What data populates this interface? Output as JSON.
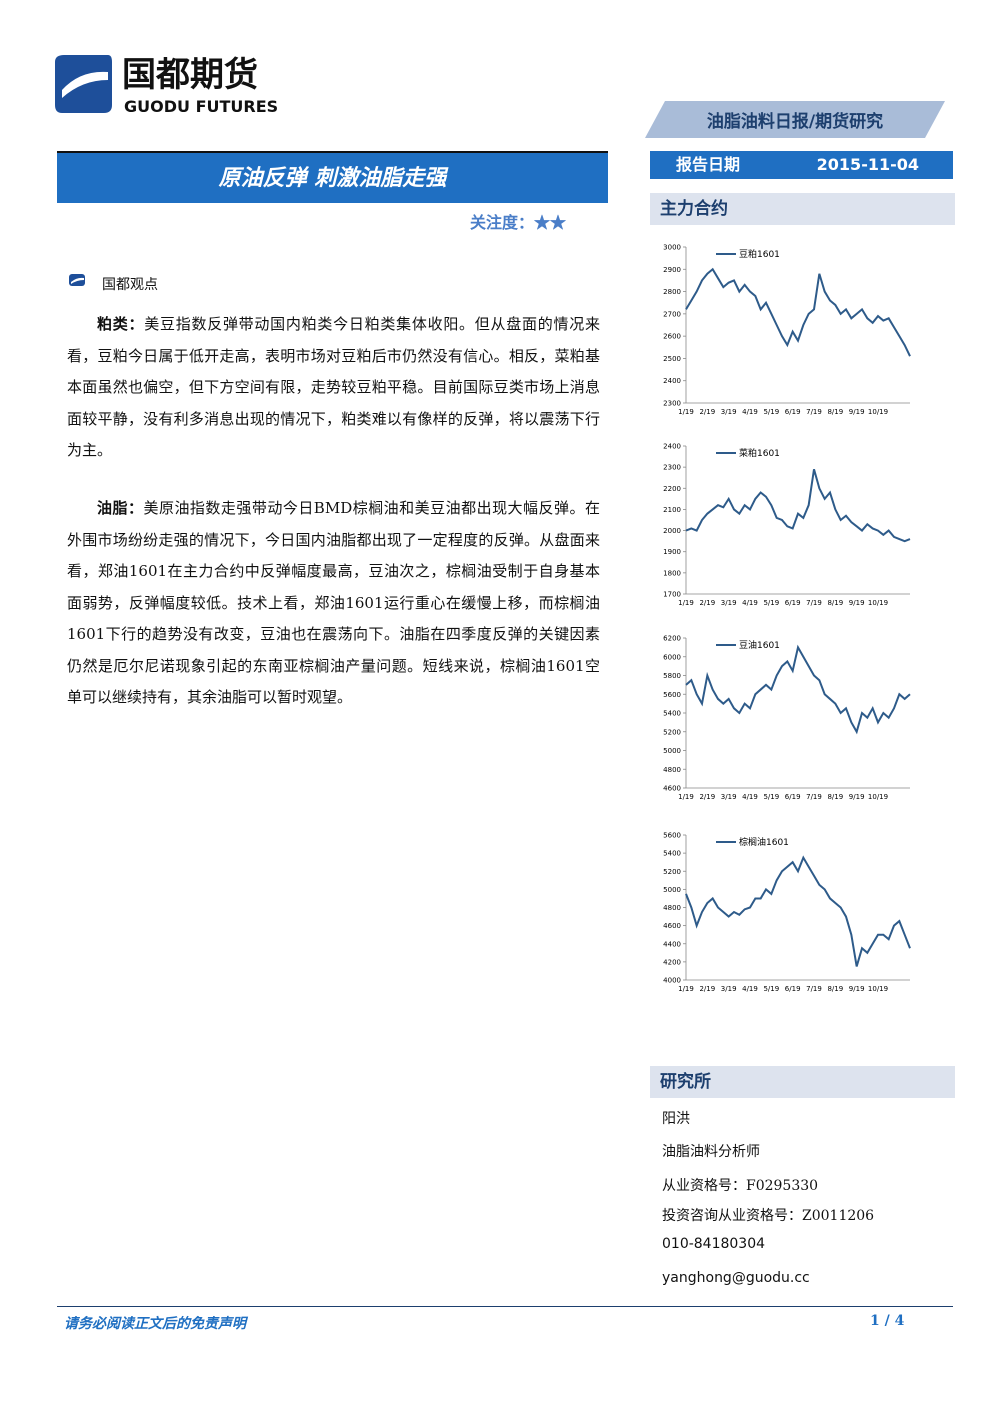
{
  "header": {
    "logo_cn": "国都期货",
    "logo_en": "GUODU FUTURES",
    "category": "油脂油料日报/期货研究",
    "report_date_label": "报告日期",
    "report_date": "2015-11-04"
  },
  "title": "原油反弹 刺激油脂走强",
  "attention_label": "关注度：",
  "attention_stars": "★★",
  "section_heading": "国都观点",
  "paragraphs": [
    {
      "lead": "粕类：",
      "text": "美豆指数反弹带动国内粕类今日粕类集体收阳。但从盘面的情况来看，豆粕今日属于低开走高，表明市场对豆粕后市仍然没有信心。相反，菜粕基本面虽然也偏空，但下方空间有限，走势较豆粕平稳。目前国际豆类市场上消息面较平静，没有利多消息出现的情况下，粕类难以有像样的反弹，将以震荡下行为主。"
    },
    {
      "lead": "油脂：",
      "text": "美原油指数走强带动今日BMD棕榈油和美豆油都出现大幅反弹。在外围市场纷纷走强的情况下，今日国内油脂都出现了一定程度的反弹。从盘面来看，郑油1601在主力合约中反弹幅度最高，豆油次之，棕榈油受制于自身基本面弱势，反弹幅度较低。技术上看，郑油1601运行重心在缓慢上移，而棕榈油1601下行的趋势没有改变，豆油也在震荡向下。油脂在四季度反弹的关键因素仍然是厄尔尼诺现象引起的东南亚棕榈油产量问题。短线来说，棕榈油1601空单可以继续持有，其余油脂可以暂时观望。"
    }
  ],
  "sidebar_heading": "主力合约",
  "research": {
    "heading": "研究所",
    "lines": [
      "阳洪",
      "油脂油料分析师",
      "从业资格号：F0295330",
      "投资咨询从业资格号：Z0011206",
      "010-84180304",
      "yanghong@guodu.cc"
    ]
  },
  "footer": {
    "disclaimer": "请务必阅读正文后的免责声明",
    "page": "1 / 4"
  },
  "chart_data": [
    {
      "type": "line",
      "categories": [
        "1/19",
        null,
        null,
        null,
        "2/19",
        null,
        null,
        null,
        "3/19",
        null,
        null,
        null,
        "4/19",
        null,
        null,
        null,
        "5/19",
        null,
        null,
        null,
        "6/19",
        null,
        null,
        null,
        "7/19",
        null,
        null,
        null,
        "8/19",
        null,
        null,
        null,
        "9/19",
        null,
        null,
        null,
        "10/19",
        null,
        null,
        null,
        null,
        null,
        null
      ],
      "series": [
        {
          "name": "豆粕1601",
          "color": "#2e5b8a",
          "values": [
            2720,
            2760,
            2800,
            2850,
            2880,
            2900,
            2860,
            2820,
            2840,
            2850,
            2800,
            2830,
            2800,
            2780,
            2720,
            2750,
            2700,
            2650,
            2600,
            2560,
            2620,
            2580,
            2650,
            2700,
            2720,
            2880,
            2800,
            2760,
            2740,
            2700,
            2720,
            2680,
            2700,
            2720,
            2680,
            2660,
            2690,
            2670,
            2680,
            2640,
            2600,
            2560,
            2510
          ]
        }
      ],
      "ylim": [
        2300,
        3000
      ],
      "yticks": [
        2300,
        2400,
        2500,
        2600,
        2700,
        2800,
        2900,
        3000
      ]
    },
    {
      "type": "line",
      "categories": [
        "1/19",
        null,
        null,
        null,
        "2/19",
        null,
        null,
        null,
        "3/19",
        null,
        null,
        null,
        "4/19",
        null,
        null,
        null,
        "5/19",
        null,
        null,
        null,
        "6/19",
        null,
        null,
        null,
        "7/19",
        null,
        null,
        null,
        "8/19",
        null,
        null,
        null,
        "9/19",
        null,
        null,
        null,
        "10/19",
        null,
        null,
        null,
        null,
        null,
        null
      ],
      "series": [
        {
          "name": "菜粕1601",
          "color": "#2e5b8a",
          "values": [
            2000,
            2010,
            2000,
            2050,
            2080,
            2100,
            2120,
            2110,
            2150,
            2100,
            2080,
            2120,
            2100,
            2150,
            2180,
            2160,
            2120,
            2060,
            2050,
            2020,
            2010,
            2080,
            2060,
            2120,
            2290,
            2200,
            2150,
            2180,
            2100,
            2050,
            2070,
            2040,
            2020,
            2000,
            2030,
            2010,
            2000,
            1980,
            2000,
            1970,
            1960,
            1950,
            1960
          ]
        }
      ],
      "ylim": [
        1700,
        2400
      ],
      "yticks": [
        1700,
        1800,
        1900,
        2000,
        2100,
        2200,
        2300,
        2400
      ]
    },
    {
      "type": "line",
      "categories": [
        "1/19",
        null,
        null,
        null,
        "2/19",
        null,
        null,
        null,
        "3/19",
        null,
        null,
        null,
        "4/19",
        null,
        null,
        null,
        "5/19",
        null,
        null,
        null,
        "6/19",
        null,
        null,
        null,
        "7/19",
        null,
        null,
        null,
        "8/19",
        null,
        null,
        null,
        "9/19",
        null,
        null,
        null,
        "10/19",
        null,
        null,
        null,
        null,
        null,
        null
      ],
      "series": [
        {
          "name": "豆油1601",
          "color": "#2e5b8a",
          "values": [
            5700,
            5750,
            5600,
            5500,
            5800,
            5650,
            5550,
            5500,
            5550,
            5450,
            5400,
            5500,
            5450,
            5600,
            5650,
            5700,
            5650,
            5800,
            5900,
            5950,
            5850,
            6100,
            6000,
            5900,
            5800,
            5750,
            5600,
            5550,
            5500,
            5400,
            5450,
            5300,
            5200,
            5400,
            5350,
            5450,
            5300,
            5400,
            5350,
            5450,
            5600,
            5550,
            5600
          ]
        }
      ],
      "ylim": [
        4600,
        6200
      ],
      "yticks": [
        4600,
        4800,
        5000,
        5200,
        5400,
        5600,
        5800,
        6000,
        6200
      ]
    },
    {
      "type": "line",
      "categories": [
        "1/19",
        null,
        null,
        null,
        "2/19",
        null,
        null,
        null,
        "3/19",
        null,
        null,
        null,
        "4/19",
        null,
        null,
        null,
        "5/19",
        null,
        null,
        null,
        "6/19",
        null,
        null,
        null,
        "7/19",
        null,
        null,
        null,
        "8/19",
        null,
        null,
        null,
        "9/19",
        null,
        null,
        null,
        "10/19",
        null,
        null,
        null,
        null,
        null,
        null
      ],
      "series": [
        {
          "name": "棕榈油1601",
          "color": "#2e5b8a",
          "values": [
            4950,
            4800,
            4600,
            4750,
            4850,
            4900,
            4800,
            4750,
            4700,
            4750,
            4720,
            4780,
            4800,
            4900,
            4900,
            5000,
            4950,
            5100,
            5200,
            5250,
            5300,
            5200,
            5350,
            5250,
            5150,
            5050,
            5000,
            4900,
            4850,
            4800,
            4700,
            4500,
            4150,
            4350,
            4300,
            4400,
            4500,
            4500,
            4450,
            4600,
            4650,
            4500,
            4350
          ]
        }
      ],
      "ylim": [
        4000,
        5600
      ],
      "yticks": [
        4000,
        4200,
        4400,
        4600,
        4800,
        5000,
        5200,
        5400,
        5600
      ]
    }
  ]
}
